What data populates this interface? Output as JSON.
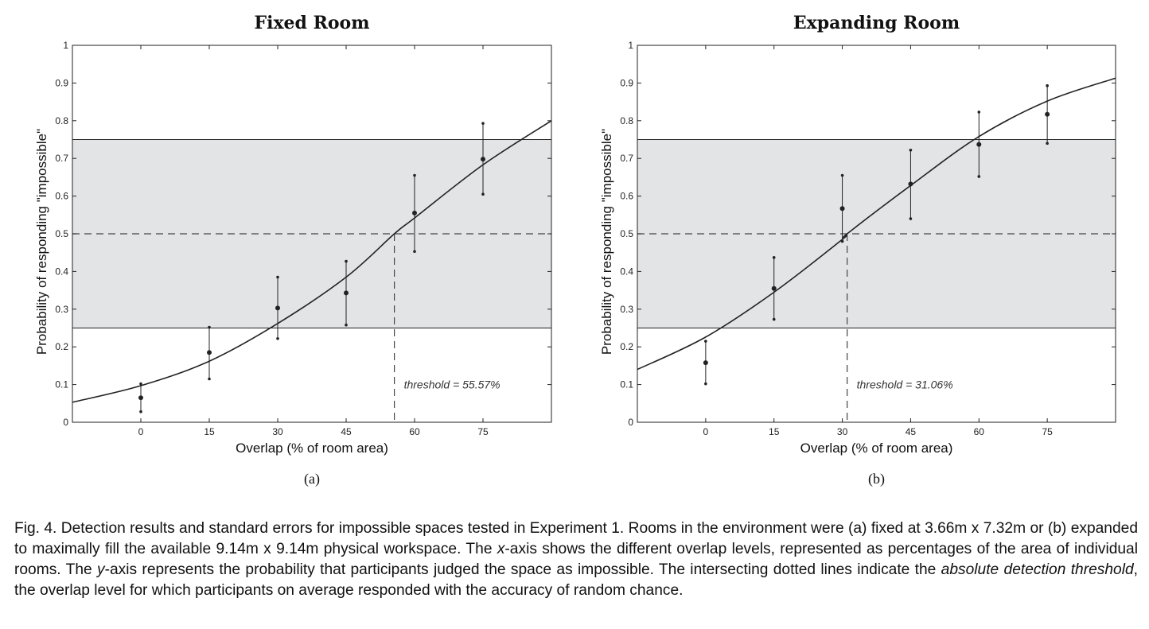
{
  "chart_data": [
    {
      "type": "line",
      "title": "Fixed Room",
      "sublabel": "(a)",
      "xlabel": "Overlap (% of room area)",
      "ylabel": "Probability of responding \"impossible\"",
      "xlim": [
        -15,
        90
      ],
      "ylim": [
        0,
        1
      ],
      "xticks": [
        0,
        15,
        30,
        45,
        60,
        75
      ],
      "yticks": [
        0,
        0.1,
        0.2,
        0.3,
        0.4,
        0.5,
        0.6,
        0.7,
        0.8,
        0.9,
        1
      ],
      "ytick_labels": [
        "0",
        "0.1",
        "0.2",
        "0.3",
        "0.4",
        "0.5",
        "0.6",
        "0.7",
        "0.8",
        "0.9",
        "1"
      ],
      "shaded_band": [
        0.25,
        0.75
      ],
      "chance_level": 0.5,
      "threshold": 55.57,
      "threshold_label": "threshold = 55.57%",
      "points": [
        {
          "x": 0,
          "y": 0.065,
          "lo": 0.028,
          "hi": 0.102
        },
        {
          "x": 15,
          "y": 0.185,
          "lo": 0.115,
          "hi": 0.252
        },
        {
          "x": 30,
          "y": 0.303,
          "lo": 0.222,
          "hi": 0.385
        },
        {
          "x": 45,
          "y": 0.343,
          "lo": 0.258,
          "hi": 0.427
        },
        {
          "x": 60,
          "y": 0.555,
          "lo": 0.453,
          "hi": 0.655
        },
        {
          "x": 75,
          "y": 0.698,
          "lo": 0.605,
          "hi": 0.793
        }
      ],
      "fit_curve": {
        "x": [
          -15,
          0,
          15,
          30,
          45,
          55.57,
          60,
          75,
          90
        ],
        "y": [
          0.053,
          0.097,
          0.162,
          0.262,
          0.385,
          0.5,
          0.542,
          0.683,
          0.8
        ]
      }
    },
    {
      "type": "line",
      "title": "Expanding Room",
      "sublabel": "(b)",
      "xlabel": "Overlap (% of room area)",
      "ylabel": "Probability of responding \"impossible\"",
      "xlim": [
        -15,
        90
      ],
      "ylim": [
        0,
        1
      ],
      "xticks": [
        0,
        15,
        30,
        45,
        60,
        75
      ],
      "yticks": [
        0,
        0.1,
        0.2,
        0.3,
        0.4,
        0.5,
        0.6,
        0.7,
        0.8,
        0.9,
        1
      ],
      "ytick_labels": [
        "0",
        "0.1",
        "0.2",
        "0.3",
        "0.4",
        "0.5",
        "0.6",
        "0.7",
        "0.8",
        "0.9",
        "1"
      ],
      "shaded_band": [
        0.25,
        0.75
      ],
      "chance_level": 0.5,
      "threshold": 31.06,
      "threshold_label": "threshold = 31.06%",
      "points": [
        {
          "x": 0,
          "y": 0.158,
          "lo": 0.102,
          "hi": 0.215
        },
        {
          "x": 15,
          "y": 0.355,
          "lo": 0.273,
          "hi": 0.437
        },
        {
          "x": 30,
          "y": 0.567,
          "lo": 0.48,
          "hi": 0.655
        },
        {
          "x": 45,
          "y": 0.632,
          "lo": 0.54,
          "hi": 0.722
        },
        {
          "x": 60,
          "y": 0.737,
          "lo": 0.652,
          "hi": 0.823
        },
        {
          "x": 75,
          "y": 0.817,
          "lo": 0.74,
          "hi": 0.893
        }
      ],
      "fit_curve": {
        "x": [
          -15,
          0,
          15,
          30,
          31.06,
          45,
          60,
          75,
          90
        ],
        "y": [
          0.14,
          0.226,
          0.345,
          0.485,
          0.5,
          0.628,
          0.758,
          0.852,
          0.913
        ]
      }
    }
  ],
  "caption": {
    "part1": "Fig. 4.  Detection results and standard errors for impossible spaces tested in Experiment 1.  Rooms in the environment were (a) fixed at 3.66m x 7.32m or (b) expanded to maximally fill the available 9.14m x 9.14m physical workspace. The ",
    "x_italic": "x",
    "part2": "-axis shows the different overlap levels, represented as percentages of the area of individual rooms.  The ",
    "y_italic": "y",
    "part3": "-axis represents the probability that participants judged the space as impossible.  The intersecting dotted lines indicate the ",
    "term_italic": "absolute detection threshold",
    "part4": ", the overlap level for which participants on average responded with the accuracy of random chance."
  }
}
